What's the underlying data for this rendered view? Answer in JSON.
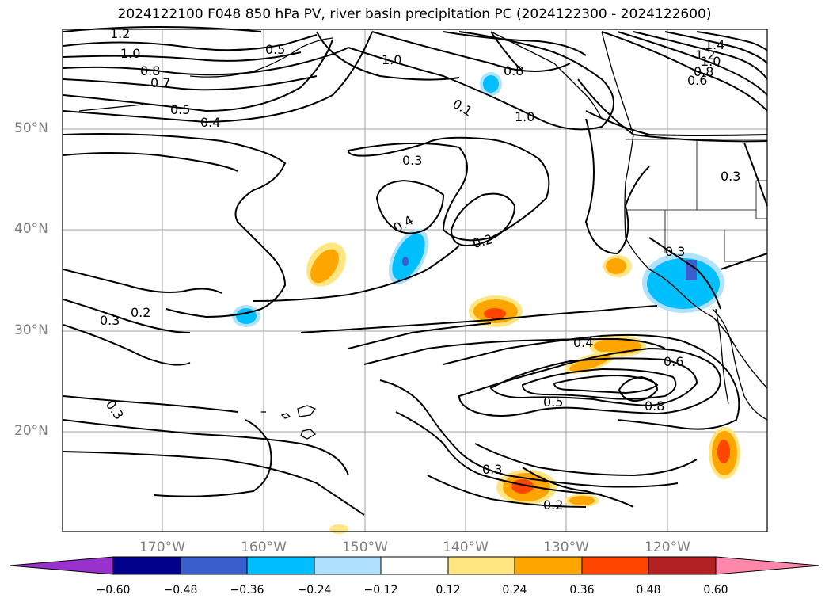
{
  "title": "2024122100 F048 850 hPa PV, river basin precipitation PC (2024122300 - 2024122600)",
  "map": {
    "lat_labels": [
      "50°N",
      "40°N",
      "30°N",
      "20°N"
    ],
    "lon_labels": [
      "170°W",
      "160°W",
      "150°W",
      "140°W",
      "130°W",
      "120°W"
    ],
    "contour_labels": [
      "1.2",
      "1.0",
      "0.8",
      "0.7",
      "0.5",
      "0.4",
      "0.5",
      "1.0",
      "0.8",
      "0.1",
      "1.0",
      "1.4",
      "1.2",
      "1.0",
      "0.8",
      "0.6",
      "0.3",
      "0.3",
      "0.4",
      "0.2",
      "0.3",
      "0.2",
      "0.3",
      "0.4",
      "0.6",
      "0.5",
      "0.8",
      "0.3",
      "0.3",
      "0.2"
    ],
    "contour_color": "#000000",
    "grid_color": "#a0a0a0",
    "coastline_color": "#000000"
  },
  "colorbar": {
    "tick_labels": [
      "−0.60",
      "−0.48",
      "−0.36",
      "−0.24",
      "−0.12",
      "0.12",
      "0.24",
      "0.36",
      "0.48",
      "0.60"
    ],
    "colors": [
      "#9932cc",
      "#00008b",
      "#3a5fcd",
      "#00bfff",
      "#b0e2ff",
      "#ffffff",
      "#ffe680",
      "#ffa500",
      "#ff4500",
      "#b22222",
      "#ff88aa"
    ]
  }
}
